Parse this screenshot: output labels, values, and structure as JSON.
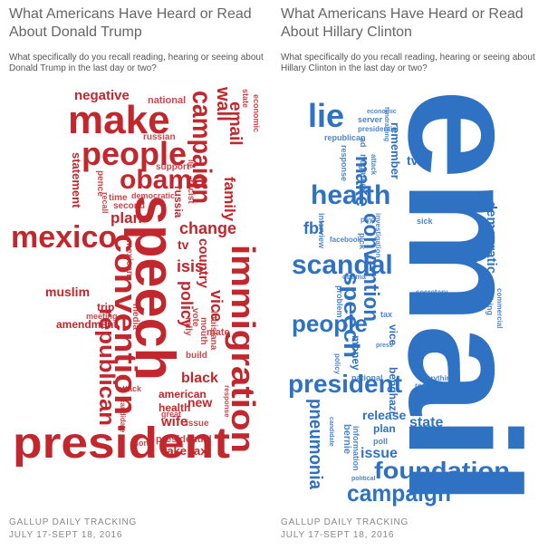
{
  "panels": [
    {
      "title": "What Americans Have Heard or Read About Donald Trump",
      "subtitle": "What specifically do you recall reading, hearing or seeing about Donald Trump in the last day or two?",
      "color": "#c1272d",
      "words": [
        "make",
        "negative",
        "national",
        "wall",
        "campaign",
        "email",
        "state",
        "economic",
        "people",
        "obama",
        "russian",
        "support",
        "statement",
        "pence",
        "lie",
        "time",
        "second",
        "democratic",
        "recall",
        "plan",
        "russia",
        "racist",
        "family",
        "change",
        "mexico",
        "speech",
        "convention",
        "mexican",
        "tv",
        "country",
        "isis",
        "policy",
        "vice",
        "vote",
        "mate",
        "louisiana",
        "mouth",
        "rally",
        "immigration",
        "muslim",
        "trip",
        "meeting",
        "amendment",
        "media",
        "republican",
        "attack",
        "great",
        "black",
        "build",
        "response",
        "american",
        "new",
        "health",
        "wife",
        "issue",
        "candidate",
        "son",
        "presidential",
        "take tax",
        "president"
      ],
      "source": "GALLUP DAILY TRACKING",
      "dates": "JULY 17-SEPT 18, 2016"
    },
    {
      "title": "What Americans Have Heard or Read About Hillary Clinton",
      "subtitle": "What specifically do you recall reading, hearing or seeing about Hillary Clinton in the last day or two?",
      "color": "#2f72c4",
      "words": [
        "email",
        "lie",
        "economic",
        "server",
        "presidential",
        "fundraising",
        "republican",
        "response",
        "ad",
        "negative",
        "attack",
        "remember",
        "make",
        "tv",
        "health",
        "fbi",
        "interview",
        "pay",
        "pick",
        "investigation",
        "liar",
        "mate",
        "sick",
        "democratic",
        "facebook",
        "question",
        "sanders",
        "scandal",
        "convention",
        "obama",
        "problem",
        "speech",
        "job",
        "secretary",
        "nothing",
        "commercial",
        "people",
        "money",
        "tax",
        "vice",
        "press",
        "policy",
        "president",
        "everything",
        "recall",
        "national",
        "benghazi",
        "release",
        "state",
        "plan",
        "candidate",
        "bernie",
        "information",
        "poll",
        "pneumonia",
        "issue",
        "political",
        "foundation",
        "campaign"
      ],
      "source": "GALLUP DAILY TRACKING",
      "dates": "JULY 17-SEPT 18, 2016"
    }
  ]
}
